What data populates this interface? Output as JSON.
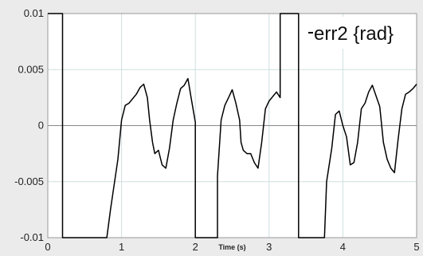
{
  "chart_data": {
    "type": "line",
    "xlabel": "Time (s)",
    "ylabel": "",
    "xlim": [
      0,
      5
    ],
    "ylim": [
      -0.01,
      0.01
    ],
    "xticks": [
      0,
      1,
      2,
      3,
      4,
      5
    ],
    "xtick_labels": [
      "0",
      "1",
      "2",
      "3",
      "4",
      "5"
    ],
    "yticks": [
      0.01,
      0.005,
      0,
      -0.005,
      -0.01
    ],
    "ytick_labels": [
      "0.01",
      "0.005",
      "0",
      "-0.005",
      "-0.01"
    ],
    "grid": true,
    "legend_position": "top-right",
    "colors": {
      "background": "#ebebeb",
      "plot_area": "#ffffff",
      "grid": "#cfdfe0",
      "line": "#000000"
    },
    "series": [
      {
        "name": "err2 {rad}",
        "x": [
          0,
          0.2,
          0.2,
          0.8,
          0.85,
          0.95,
          1.0,
          1.05,
          1.1,
          1.2,
          1.25,
          1.3,
          1.35,
          1.38,
          1.42,
          1.45,
          1.5,
          1.55,
          1.6,
          1.65,
          1.7,
          1.75,
          1.8,
          1.85,
          1.9,
          1.95,
          2.0,
          2.0,
          2.3,
          2.3,
          2.35,
          2.4,
          2.45,
          2.5,
          2.55,
          2.6,
          2.62,
          2.65,
          2.7,
          2.75,
          2.8,
          2.85,
          2.9,
          2.95,
          3.0,
          3.1,
          3.15,
          3.15,
          3.4,
          3.4,
          3.75,
          3.78,
          3.85,
          3.9,
          3.95,
          4.0,
          4.05,
          4.1,
          4.15,
          4.2,
          4.25,
          4.3,
          4.35,
          4.4,
          4.5,
          4.55,
          4.6,
          4.65,
          4.7,
          4.75,
          4.8,
          4.85,
          4.9,
          4.95,
          5.0
        ],
        "y": [
          0.01,
          0.01,
          -0.01,
          -0.01,
          -0.0075,
          -0.003,
          0.0005,
          0.0018,
          0.002,
          0.0028,
          0.0034,
          0.0037,
          0.0025,
          0.0005,
          -0.0015,
          -0.0025,
          -0.0022,
          -0.0035,
          -0.0038,
          -0.002,
          0.0005,
          0.002,
          0.0033,
          0.0036,
          0.0042,
          0.0022,
          0.0003,
          -0.01,
          -0.01,
          -0.0045,
          0.0005,
          0.0018,
          0.0025,
          0.0032,
          0.002,
          0.0005,
          -0.0015,
          -0.0022,
          -0.0025,
          -0.0025,
          -0.0033,
          -0.0038,
          -0.0015,
          0.0015,
          0.0022,
          0.003,
          0.0025,
          0.01,
          0.01,
          -0.01,
          -0.01,
          -0.005,
          -0.002,
          0.001,
          0.0013,
          0.0,
          -0.001,
          -0.0035,
          -0.0033,
          -0.0015,
          0.0015,
          0.002,
          0.003,
          0.0036,
          0.0017,
          -0.0015,
          -0.003,
          -0.0038,
          -0.0042,
          -0.0012,
          0.0015,
          0.0028,
          0.003,
          0.0033,
          0.0037
        ]
      }
    ]
  }
}
